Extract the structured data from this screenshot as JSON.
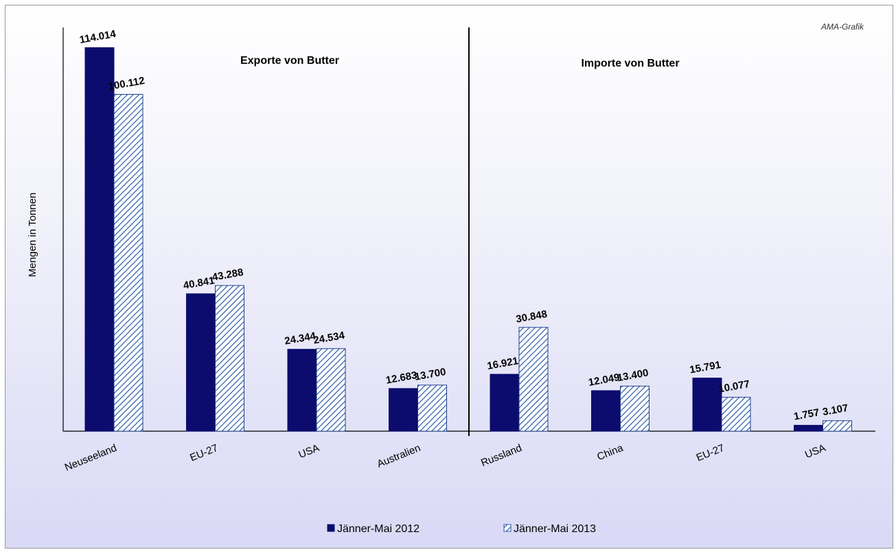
{
  "credit": "AMA-Grafik",
  "colors": {
    "series_2012": "#0c0c6e",
    "series_2013_stripe": "#2a5aa6",
    "series_2013_bg": "#ffffff"
  },
  "legend": {
    "items": [
      "Jänner-Mai 2012",
      "Jänner-Mai 2013"
    ],
    "placement": "bottom"
  },
  "chart_data": [
    {
      "type": "bar",
      "title": "Exporte von Butter",
      "ylabel": "Mengen in Tonnen",
      "ylim": [
        0,
        120000
      ],
      "grid": false,
      "categories": [
        "Neuseeland",
        "EU-27",
        "USA",
        "Australien"
      ],
      "series": [
        {
          "name": "Jänner-Mai 2012",
          "values": [
            114014,
            40841,
            24344,
            12683
          ],
          "labels": [
            "114.014",
            "40.841",
            "24.344",
            "12.683"
          ]
        },
        {
          "name": "Jänner-Mai 2013",
          "values": [
            100112,
            43288,
            24534,
            13700
          ],
          "labels": [
            "100.112",
            "43.288",
            "24.534",
            "13.700"
          ]
        }
      ]
    },
    {
      "type": "bar",
      "title": "Importe von Butter",
      "ylim": [
        0,
        120000
      ],
      "grid": false,
      "categories": [
        "Russland",
        "China",
        "EU-27",
        "USA"
      ],
      "series": [
        {
          "name": "Jänner-Mai 2012",
          "values": [
            16921,
            12049,
            15791,
            1757
          ],
          "labels": [
            "16.921",
            "12.049",
            "15.791",
            "1.757"
          ]
        },
        {
          "name": "Jänner-Mai 2013",
          "values": [
            30848,
            13400,
            10077,
            3107
          ],
          "labels": [
            "30.848",
            "13.400",
            "10.077",
            "3.107"
          ]
        }
      ]
    }
  ]
}
